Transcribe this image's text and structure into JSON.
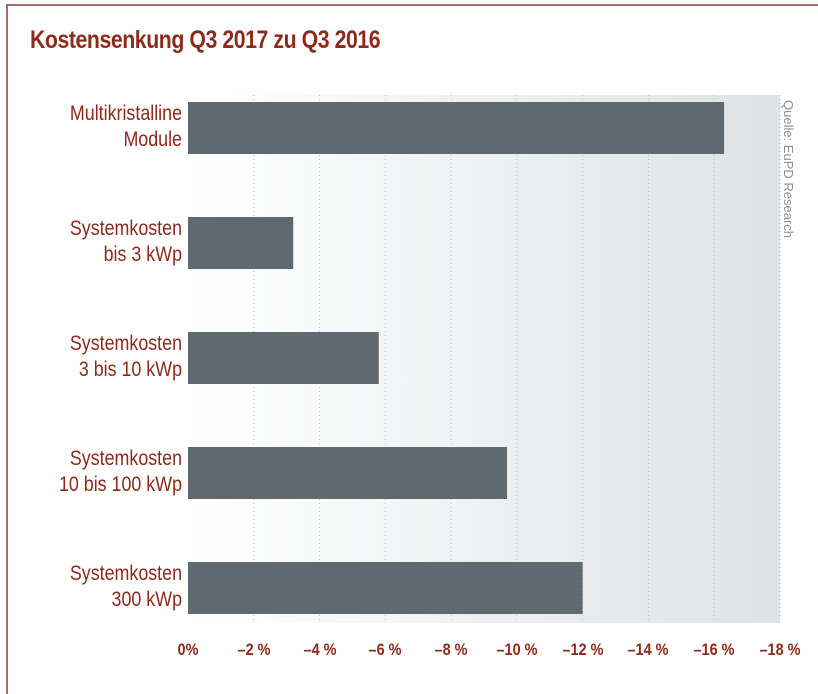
{
  "chart_data": {
    "type": "bar",
    "orientation": "horizontal",
    "title": "Kostensenkung Q3 2017 zu Q3 2016",
    "categories": [
      "Multikristalline\nModule",
      "Systemkosten\nbis 3 kWp",
      "Systemkosten\n3 bis 10 kWp",
      "Systemkosten\n10 bis 100 kWp",
      "Systemkosten\n300 kWp"
    ],
    "values": [
      -16.3,
      -3.2,
      -5.8,
      -9.7,
      -12.0
    ],
    "color": "#5f6a70",
    "xlim": [
      0,
      -18
    ],
    "xticks": [
      {
        "value": 0,
        "label": "0%"
      },
      {
        "value": -2,
        "label": "–2 %"
      },
      {
        "value": -4,
        "label": "–4 %"
      },
      {
        "value": -6,
        "label": "–6 %"
      },
      {
        "value": -8,
        "label": "–8 %"
      },
      {
        "value": -10,
        "label": "–10 %"
      },
      {
        "value": -12,
        "label": "–12 %"
      },
      {
        "value": -14,
        "label": "–14 %"
      },
      {
        "value": -16,
        "label": "–16 %"
      },
      {
        "value": -18,
        "label": "–18 %"
      }
    ],
    "grid": true,
    "source": "Quelle: EuPD Research"
  }
}
